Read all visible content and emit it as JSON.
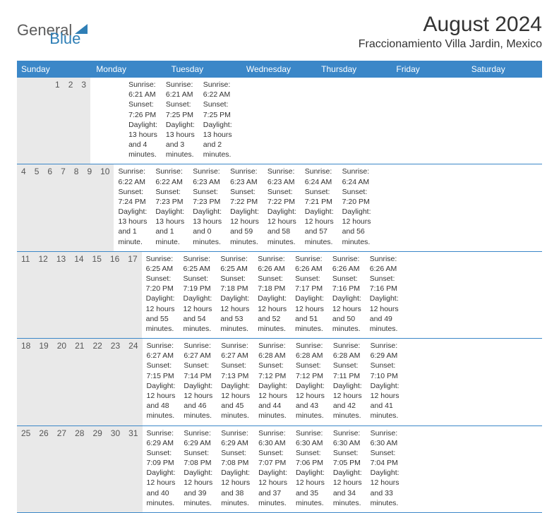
{
  "logo": {
    "text1": "General",
    "text2": "Blue"
  },
  "month_title": "August 2024",
  "location": "Fraccionamiento Villa Jardin, Mexico",
  "colors": {
    "header_bg": "#3b87c8",
    "header_text": "#ffffff",
    "daynum_bg": "#e9e9e9",
    "row_border": "#3b87c8",
    "text": "#333333",
    "logo_gray": "#5b5b5b",
    "logo_blue": "#2f7fb6"
  },
  "weekdays": [
    "Sunday",
    "Monday",
    "Tuesday",
    "Wednesday",
    "Thursday",
    "Friday",
    "Saturday"
  ],
  "weeks": [
    [
      {
        "num": "",
        "sunrise": "",
        "sunset": "",
        "daylight": ""
      },
      {
        "num": "",
        "sunrise": "",
        "sunset": "",
        "daylight": ""
      },
      {
        "num": "",
        "sunrise": "",
        "sunset": "",
        "daylight": ""
      },
      {
        "num": "",
        "sunrise": "",
        "sunset": "",
        "daylight": ""
      },
      {
        "num": "1",
        "sunrise": "Sunrise: 6:21 AM",
        "sunset": "Sunset: 7:26 PM",
        "daylight": "Daylight: 13 hours and 4 minutes."
      },
      {
        "num": "2",
        "sunrise": "Sunrise: 6:21 AM",
        "sunset": "Sunset: 7:25 PM",
        "daylight": "Daylight: 13 hours and 3 minutes."
      },
      {
        "num": "3",
        "sunrise": "Sunrise: 6:22 AM",
        "sunset": "Sunset: 7:25 PM",
        "daylight": "Daylight: 13 hours and 2 minutes."
      }
    ],
    [
      {
        "num": "4",
        "sunrise": "Sunrise: 6:22 AM",
        "sunset": "Sunset: 7:24 PM",
        "daylight": "Daylight: 13 hours and 1 minute."
      },
      {
        "num": "5",
        "sunrise": "Sunrise: 6:22 AM",
        "sunset": "Sunset: 7:23 PM",
        "daylight": "Daylight: 13 hours and 1 minute."
      },
      {
        "num": "6",
        "sunrise": "Sunrise: 6:23 AM",
        "sunset": "Sunset: 7:23 PM",
        "daylight": "Daylight: 13 hours and 0 minutes."
      },
      {
        "num": "7",
        "sunrise": "Sunrise: 6:23 AM",
        "sunset": "Sunset: 7:22 PM",
        "daylight": "Daylight: 12 hours and 59 minutes."
      },
      {
        "num": "8",
        "sunrise": "Sunrise: 6:23 AM",
        "sunset": "Sunset: 7:22 PM",
        "daylight": "Daylight: 12 hours and 58 minutes."
      },
      {
        "num": "9",
        "sunrise": "Sunrise: 6:24 AM",
        "sunset": "Sunset: 7:21 PM",
        "daylight": "Daylight: 12 hours and 57 minutes."
      },
      {
        "num": "10",
        "sunrise": "Sunrise: 6:24 AM",
        "sunset": "Sunset: 7:20 PM",
        "daylight": "Daylight: 12 hours and 56 minutes."
      }
    ],
    [
      {
        "num": "11",
        "sunrise": "Sunrise: 6:25 AM",
        "sunset": "Sunset: 7:20 PM",
        "daylight": "Daylight: 12 hours and 55 minutes."
      },
      {
        "num": "12",
        "sunrise": "Sunrise: 6:25 AM",
        "sunset": "Sunset: 7:19 PM",
        "daylight": "Daylight: 12 hours and 54 minutes."
      },
      {
        "num": "13",
        "sunrise": "Sunrise: 6:25 AM",
        "sunset": "Sunset: 7:18 PM",
        "daylight": "Daylight: 12 hours and 53 minutes."
      },
      {
        "num": "14",
        "sunrise": "Sunrise: 6:26 AM",
        "sunset": "Sunset: 7:18 PM",
        "daylight": "Daylight: 12 hours and 52 minutes."
      },
      {
        "num": "15",
        "sunrise": "Sunrise: 6:26 AM",
        "sunset": "Sunset: 7:17 PM",
        "daylight": "Daylight: 12 hours and 51 minutes."
      },
      {
        "num": "16",
        "sunrise": "Sunrise: 6:26 AM",
        "sunset": "Sunset: 7:16 PM",
        "daylight": "Daylight: 12 hours and 50 minutes."
      },
      {
        "num": "17",
        "sunrise": "Sunrise: 6:26 AM",
        "sunset": "Sunset: 7:16 PM",
        "daylight": "Daylight: 12 hours and 49 minutes."
      }
    ],
    [
      {
        "num": "18",
        "sunrise": "Sunrise: 6:27 AM",
        "sunset": "Sunset: 7:15 PM",
        "daylight": "Daylight: 12 hours and 48 minutes."
      },
      {
        "num": "19",
        "sunrise": "Sunrise: 6:27 AM",
        "sunset": "Sunset: 7:14 PM",
        "daylight": "Daylight: 12 hours and 46 minutes."
      },
      {
        "num": "20",
        "sunrise": "Sunrise: 6:27 AM",
        "sunset": "Sunset: 7:13 PM",
        "daylight": "Daylight: 12 hours and 45 minutes."
      },
      {
        "num": "21",
        "sunrise": "Sunrise: 6:28 AM",
        "sunset": "Sunset: 7:12 PM",
        "daylight": "Daylight: 12 hours and 44 minutes."
      },
      {
        "num": "22",
        "sunrise": "Sunrise: 6:28 AM",
        "sunset": "Sunset: 7:12 PM",
        "daylight": "Daylight: 12 hours and 43 minutes."
      },
      {
        "num": "23",
        "sunrise": "Sunrise: 6:28 AM",
        "sunset": "Sunset: 7:11 PM",
        "daylight": "Daylight: 12 hours and 42 minutes."
      },
      {
        "num": "24",
        "sunrise": "Sunrise: 6:29 AM",
        "sunset": "Sunset: 7:10 PM",
        "daylight": "Daylight: 12 hours and 41 minutes."
      }
    ],
    [
      {
        "num": "25",
        "sunrise": "Sunrise: 6:29 AM",
        "sunset": "Sunset: 7:09 PM",
        "daylight": "Daylight: 12 hours and 40 minutes."
      },
      {
        "num": "26",
        "sunrise": "Sunrise: 6:29 AM",
        "sunset": "Sunset: 7:08 PM",
        "daylight": "Daylight: 12 hours and 39 minutes."
      },
      {
        "num": "27",
        "sunrise": "Sunrise: 6:29 AM",
        "sunset": "Sunset: 7:08 PM",
        "daylight": "Daylight: 12 hours and 38 minutes."
      },
      {
        "num": "28",
        "sunrise": "Sunrise: 6:30 AM",
        "sunset": "Sunset: 7:07 PM",
        "daylight": "Daylight: 12 hours and 37 minutes."
      },
      {
        "num": "29",
        "sunrise": "Sunrise: 6:30 AM",
        "sunset": "Sunset: 7:06 PM",
        "daylight": "Daylight: 12 hours and 35 minutes."
      },
      {
        "num": "30",
        "sunrise": "Sunrise: 6:30 AM",
        "sunset": "Sunset: 7:05 PM",
        "daylight": "Daylight: 12 hours and 34 minutes."
      },
      {
        "num": "31",
        "sunrise": "Sunrise: 6:30 AM",
        "sunset": "Sunset: 7:04 PM",
        "daylight": "Daylight: 12 hours and 33 minutes."
      }
    ]
  ]
}
